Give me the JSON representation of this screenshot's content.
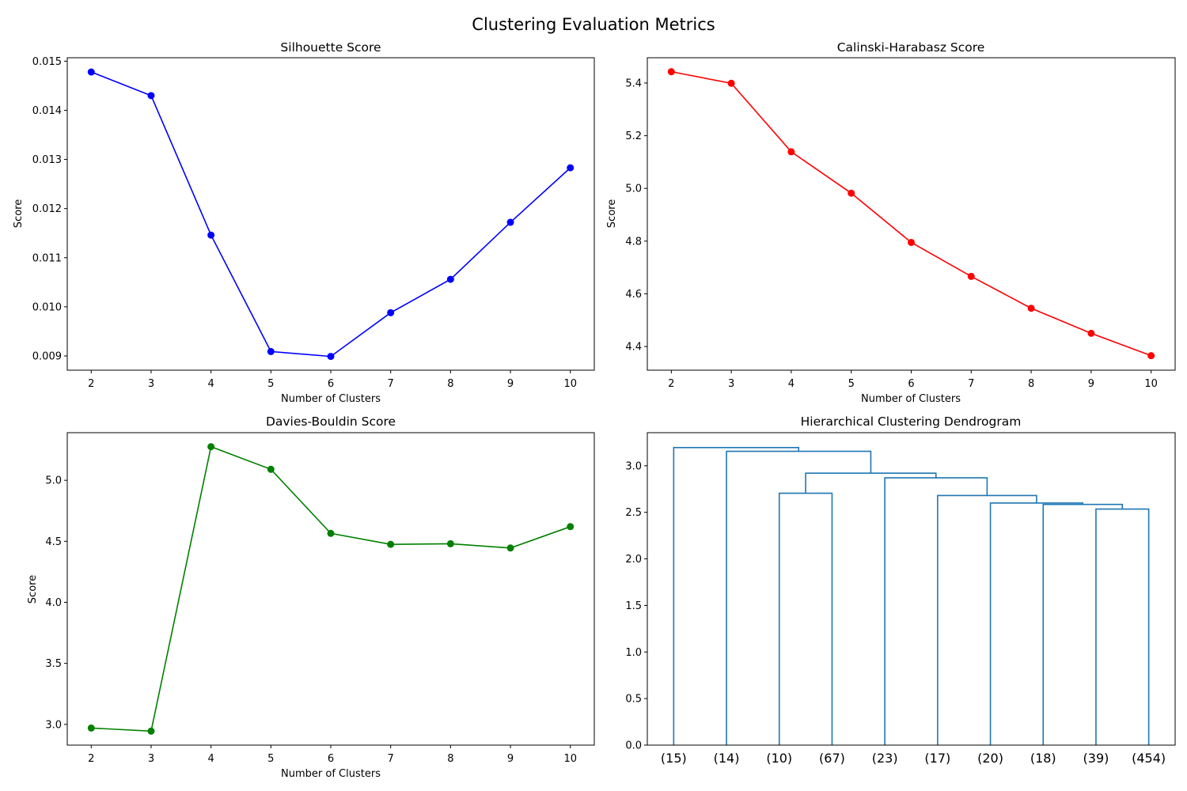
{
  "figure": {
    "title": "Clustering Evaluation Metrics"
  },
  "chart_data": [
    {
      "type": "line",
      "title": "Silhouette Score",
      "xlabel": "Number of Clusters",
      "ylabel": "Score",
      "x": [
        2,
        3,
        4,
        5,
        6,
        7,
        8,
        9,
        10
      ],
      "series": [
        {
          "color": "#0000ff",
          "marker": "circle",
          "values": [
            0.01478,
            0.0143,
            0.01146,
            0.00909,
            0.00899,
            0.00988,
            0.01056,
            0.01172,
            0.01283
          ]
        }
      ],
      "xlim": [
        1.6,
        10.4
      ],
      "ylim": [
        0.00871,
        0.01507
      ],
      "xticks": [
        2,
        3,
        4,
        5,
        6,
        7,
        8,
        9,
        10
      ],
      "yticks": [
        "0.009",
        "0.010",
        "0.011",
        "0.012",
        "0.013",
        "0.014",
        "0.015"
      ],
      "ytick_values": [
        0.009,
        0.01,
        0.011,
        0.012,
        0.013,
        0.014,
        0.015
      ],
      "grid": false
    },
    {
      "type": "line",
      "title": "Calinski-Harabasz Score",
      "xlabel": "Number of Clusters",
      "ylabel": "Score",
      "x": [
        2,
        3,
        4,
        5,
        6,
        7,
        8,
        9,
        10
      ],
      "series": [
        {
          "color": "#ff0000",
          "marker": "circle",
          "values": [
            5.443,
            5.399,
            5.139,
            4.982,
            4.795,
            4.666,
            4.545,
            4.45,
            4.365
          ]
        }
      ],
      "xlim": [
        1.6,
        10.4
      ],
      "ylim": [
        4.31,
        5.496
      ],
      "xticks": [
        2,
        3,
        4,
        5,
        6,
        7,
        8,
        9,
        10
      ],
      "yticks": [
        "4.4",
        "4.6",
        "4.8",
        "5.0",
        "5.2",
        "5.4"
      ],
      "ytick_values": [
        4.4,
        4.6,
        4.8,
        5.0,
        5.2,
        5.4
      ],
      "grid": false
    },
    {
      "type": "line",
      "title": "Davies-Bouldin Score",
      "xlabel": "Number of Clusters",
      "ylabel": "Score",
      "x": [
        2,
        3,
        4,
        5,
        6,
        7,
        8,
        9,
        10
      ],
      "series": [
        {
          "color": "#008000",
          "marker": "circle",
          "values": [
            2.97,
            2.945,
            5.275,
            5.09,
            4.565,
            4.475,
            4.48,
            4.445,
            4.62
          ]
        }
      ],
      "xlim": [
        1.6,
        10.4
      ],
      "ylim": [
        2.83,
        5.39
      ],
      "xticks": [
        2,
        3,
        4,
        5,
        6,
        7,
        8,
        9,
        10
      ],
      "yticks": [
        "3.0",
        "3.5",
        "4.0",
        "4.5",
        "5.0"
      ],
      "ytick_values": [
        3.0,
        3.5,
        4.0,
        4.5,
        5.0
      ],
      "grid": false
    },
    {
      "type": "dendrogram",
      "title": "Hierarchical Clustering Dendrogram",
      "xlabel": "",
      "ylabel": "",
      "color": "#1f77b4",
      "leaf_labels": [
        "(15)",
        "(14)",
        "(10)",
        "(67)",
        "(23)",
        "(17)",
        "(20)",
        "(18)",
        "(39)",
        "(454)"
      ],
      "links": [
        {
          "left": [
            8,
            0
          ],
          "right": [
            9,
            0
          ],
          "height": 2.535
        },
        {
          "left": [
            7,
            0
          ],
          "right": [
            8.5,
            2.535
          ],
          "height": 2.585
        },
        {
          "left": [
            6,
            0
          ],
          "right": [
            7.75,
            2.585
          ],
          "height": 2.6
        },
        {
          "left": [
            5,
            0
          ],
          "right": [
            6.875,
            2.6
          ],
          "height": 2.68
        },
        {
          "left": [
            2,
            0
          ],
          "right": [
            3,
            0
          ],
          "height": 2.705
        },
        {
          "left": [
            4,
            0
          ],
          "right": [
            5.9375,
            2.68
          ],
          "height": 2.87
        },
        {
          "left": [
            2.5,
            2.705
          ],
          "right": [
            4.96875,
            2.87
          ],
          "height": 2.92
        },
        {
          "left": [
            1,
            0
          ],
          "right": [
            3.734375,
            2.92
          ],
          "height": 3.155
        },
        {
          "left": [
            0,
            0
          ],
          "right": [
            2.3671875,
            3.155
          ],
          "height": 3.195
        }
      ],
      "ylim": [
        0,
        3.355
      ],
      "yticks": [
        "0.0",
        "0.5",
        "1.0",
        "1.5",
        "2.0",
        "2.5",
        "3.0"
      ],
      "ytick_values": [
        0,
        0.5,
        1.0,
        1.5,
        2.0,
        2.5,
        3.0
      ]
    }
  ]
}
